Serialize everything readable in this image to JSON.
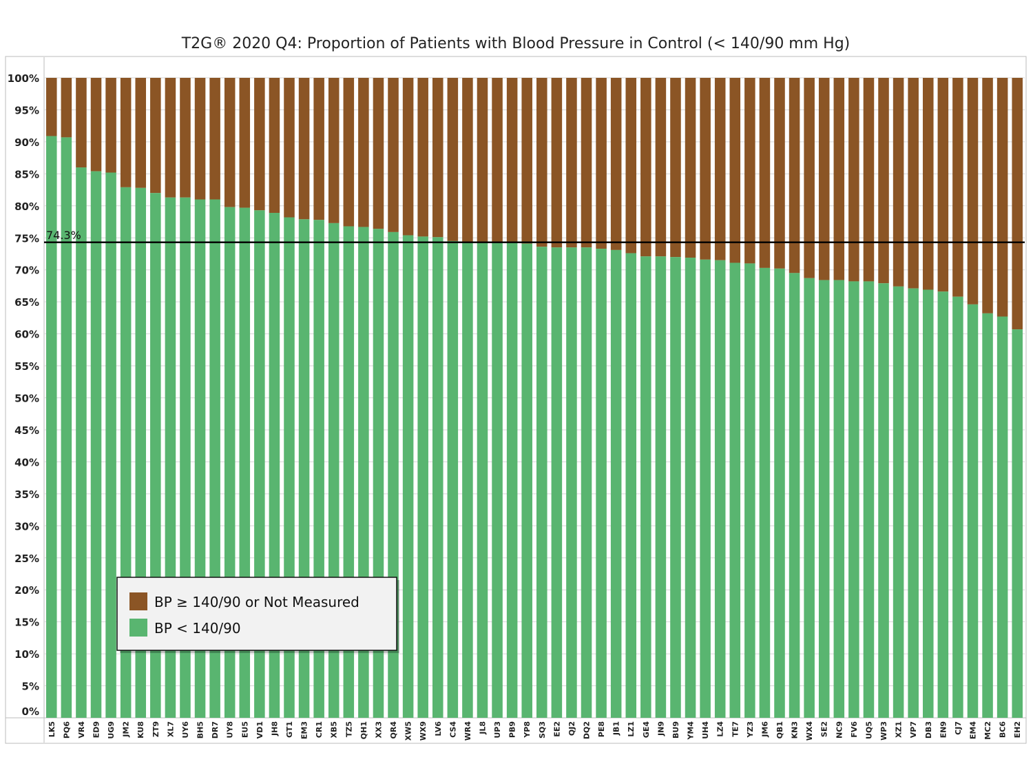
{
  "chart_data": {
    "type": "bar",
    "stacked": true,
    "title": "T2G® 2020 Q4: Proportion of Patients with Blood Pressure in Control (< 140/90 mm Hg)",
    "xlabel": "",
    "ylabel": "",
    "ylim": [
      0,
      100
    ],
    "y_ticks": [
      "0%",
      "5%",
      "10%",
      "15%",
      "20%",
      "25%",
      "30%",
      "35%",
      "40%",
      "45%",
      "50%",
      "55%",
      "60%",
      "65%",
      "70%",
      "75%",
      "80%",
      "85%",
      "90%",
      "95%",
      "100%"
    ],
    "grid": true,
    "legend_position": "bottom-left",
    "categories": [
      "LK5",
      "PQ6",
      "VR4",
      "ED9",
      "UG9",
      "JM2",
      "KU8",
      "ZT9",
      "XL7",
      "UY6",
      "BH5",
      "DR7",
      "UY8",
      "EU5",
      "VD1",
      "JH8",
      "GT1",
      "EM3",
      "CR1",
      "XB5",
      "TZ5",
      "QH1",
      "XX3",
      "QR4",
      "XW5",
      "WX9",
      "LV6",
      "CS4",
      "WR4",
      "JL8",
      "UP3",
      "PB9",
      "YP8",
      "SQ3",
      "EE2",
      "QJ2",
      "DQ2",
      "PE8",
      "JB1",
      "LZ1",
      "GE4",
      "JN9",
      "BU9",
      "YM4",
      "UH4",
      "LZ4",
      "TE7",
      "YZ3",
      "JM6",
      "QB1",
      "KN3",
      "WX4",
      "SE2",
      "NC9",
      "FV6",
      "UQ5",
      "WP3",
      "XZ1",
      "VP7",
      "DB3",
      "EN9",
      "CJ7",
      "EM4",
      "MC2",
      "BC6",
      "EH2"
    ],
    "series": [
      {
        "name": "BP < 140/90",
        "color": "#59b570",
        "values": [
          90.9,
          90.7,
          86.0,
          85.4,
          85.2,
          82.9,
          82.8,
          82.0,
          81.3,
          81.3,
          81.0,
          81.0,
          79.8,
          79.7,
          79.3,
          78.9,
          78.2,
          77.9,
          77.8,
          77.3,
          76.8,
          76.7,
          76.4,
          75.9,
          75.4,
          75.2,
          75.1,
          74.5,
          74.3,
          74.2,
          74.2,
          74.2,
          74.1,
          73.6,
          73.5,
          73.5,
          73.5,
          73.3,
          73.1,
          72.6,
          72.1,
          72.1,
          72.0,
          71.9,
          71.6,
          71.5,
          71.1,
          71.0,
          70.3,
          70.2,
          69.5,
          68.7,
          68.4,
          68.4,
          68.2,
          68.2,
          67.9,
          67.4,
          67.1,
          66.9,
          66.6,
          65.8,
          64.6,
          63.2,
          62.7,
          60.7
        ]
      },
      {
        "name": "BP ≥ 140/90 or Not Measured",
        "color": "#8b5525",
        "values": [
          9.1,
          9.3,
          14.0,
          14.6,
          14.8,
          17.1,
          17.2,
          18.0,
          18.7,
          18.7,
          19.0,
          19.0,
          20.2,
          20.3,
          20.7,
          21.1,
          21.8,
          22.1,
          22.2,
          22.7,
          23.2,
          23.3,
          23.6,
          24.1,
          24.6,
          24.8,
          24.9,
          25.5,
          25.7,
          25.8,
          25.8,
          25.8,
          25.9,
          26.4,
          26.5,
          26.5,
          26.5,
          26.7,
          26.9,
          27.4,
          27.9,
          27.9,
          28.0,
          28.1,
          28.4,
          28.5,
          28.9,
          29.0,
          29.7,
          29.8,
          30.5,
          31.3,
          31.6,
          31.6,
          31.8,
          31.8,
          32.1,
          32.6,
          32.9,
          33.1,
          33.4,
          34.2,
          35.4,
          36.8,
          37.3,
          39.3
        ]
      }
    ],
    "reference_line": {
      "value": 74.3,
      "label": "74.3%"
    },
    "legend": [
      {
        "label": "BP ≥ 140/90 or Not Measured",
        "color": "#8b5525"
      },
      {
        "label": "BP < 140/90",
        "color": "#59b570"
      }
    ]
  }
}
